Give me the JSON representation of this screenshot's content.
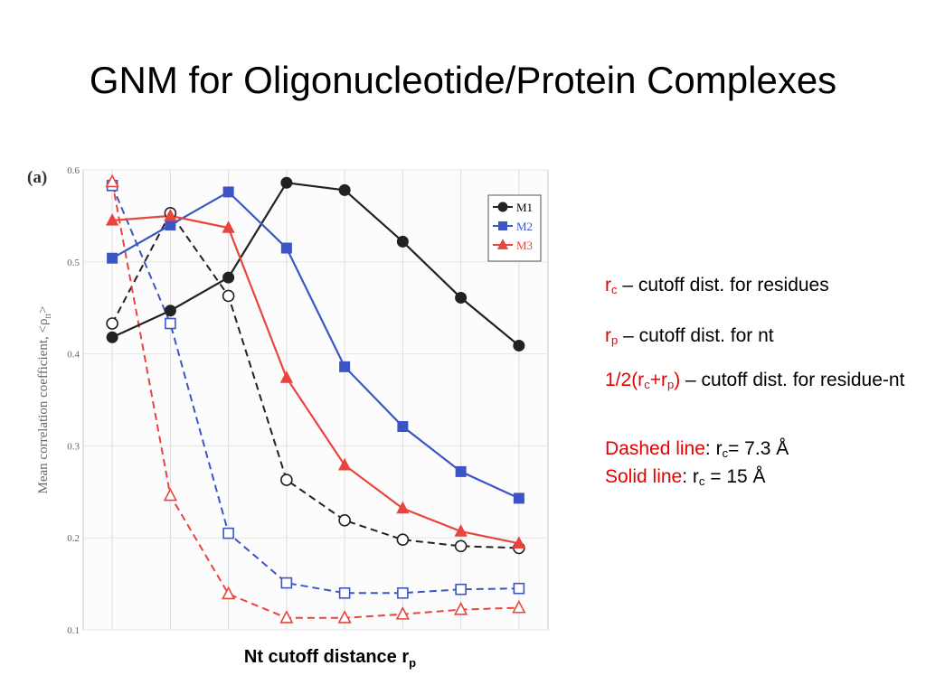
{
  "slide": {
    "title": "GNM for Oligonucleotide/Protein Complexes"
  },
  "notes": {
    "rc_sym": "r",
    "rc_sub": "c",
    "rc_desc": " – cutoff dist. for residues",
    "rp_sym": "r",
    "rp_sub": "p",
    "rp_desc": " – cutoff dist. for nt",
    "half_a": "1/2(r",
    "half_b": "c",
    "half_c": "+r",
    "half_d": "p",
    "half_e": ")",
    "half_desc": " – cutoff dist. for residue-nt",
    "dashed_label": "Dashed line",
    "dashed_a": ": r",
    "dashed_sub": "c",
    "dashed_b": "= 7.3 Å",
    "solid_label": "Solid line",
    "solid_a": ": r",
    "solid_sub": "c",
    "solid_b": " = 15 Å"
  },
  "chart_data": {
    "type": "line",
    "panel_label": "(a)",
    "title": "",
    "xlabel": "Nt cutoff distance r",
    "xlabel_sub": "p",
    "ylabel": "Mean correlation coefficient, <ρ",
    "ylabel_sub": "tt",
    "ylabel_end": ">",
    "x": [
      1,
      2,
      3,
      4,
      5,
      6,
      7,
      8
    ],
    "xlim": [
      0.5,
      8.5
    ],
    "ylim": [
      0.1,
      0.6
    ],
    "yticks": [
      "0.1",
      "0.2",
      "0.3",
      "0.4",
      "0.5",
      "0.6"
    ],
    "grid": true,
    "legend_position": "top-right",
    "series": [
      {
        "name": "M1",
        "line": "solid",
        "marker": "circle",
        "filled": true,
        "color": "#222222",
        "legend_color": "#000000",
        "values": [
          0.418,
          0.447,
          0.483,
          0.586,
          0.578,
          0.522,
          0.461,
          0.409
        ]
      },
      {
        "name": "M2",
        "line": "solid",
        "marker": "square",
        "filled": true,
        "color": "#3b55c6",
        "legend_color": "#3b55c6",
        "values": [
          0.504,
          0.54,
          0.576,
          0.515,
          0.386,
          0.321,
          0.272,
          0.243
        ]
      },
      {
        "name": "M3",
        "line": "solid",
        "marker": "triangle",
        "filled": true,
        "color": "#e8453c",
        "legend_color": "#e8453c",
        "values": [
          0.545,
          0.55,
          0.537,
          0.374,
          0.279,
          0.232,
          0.207,
          0.194
        ]
      },
      {
        "line": "dashed",
        "marker": "circle",
        "filled": false,
        "color": "#222222",
        "values": [
          0.433,
          0.553,
          0.463,
          0.263,
          0.219,
          0.198,
          0.191,
          0.189
        ]
      },
      {
        "line": "dashed",
        "marker": "square",
        "filled": false,
        "color": "#3b55c6",
        "values": [
          0.583,
          0.433,
          0.205,
          0.151,
          0.14,
          0.14,
          0.144,
          0.145
        ]
      },
      {
        "line": "dashed",
        "marker": "triangle",
        "filled": false,
        "color": "#e8453c",
        "values": [
          0.587,
          0.246,
          0.139,
          0.113,
          0.113,
          0.117,
          0.122,
          0.124
        ]
      }
    ]
  }
}
